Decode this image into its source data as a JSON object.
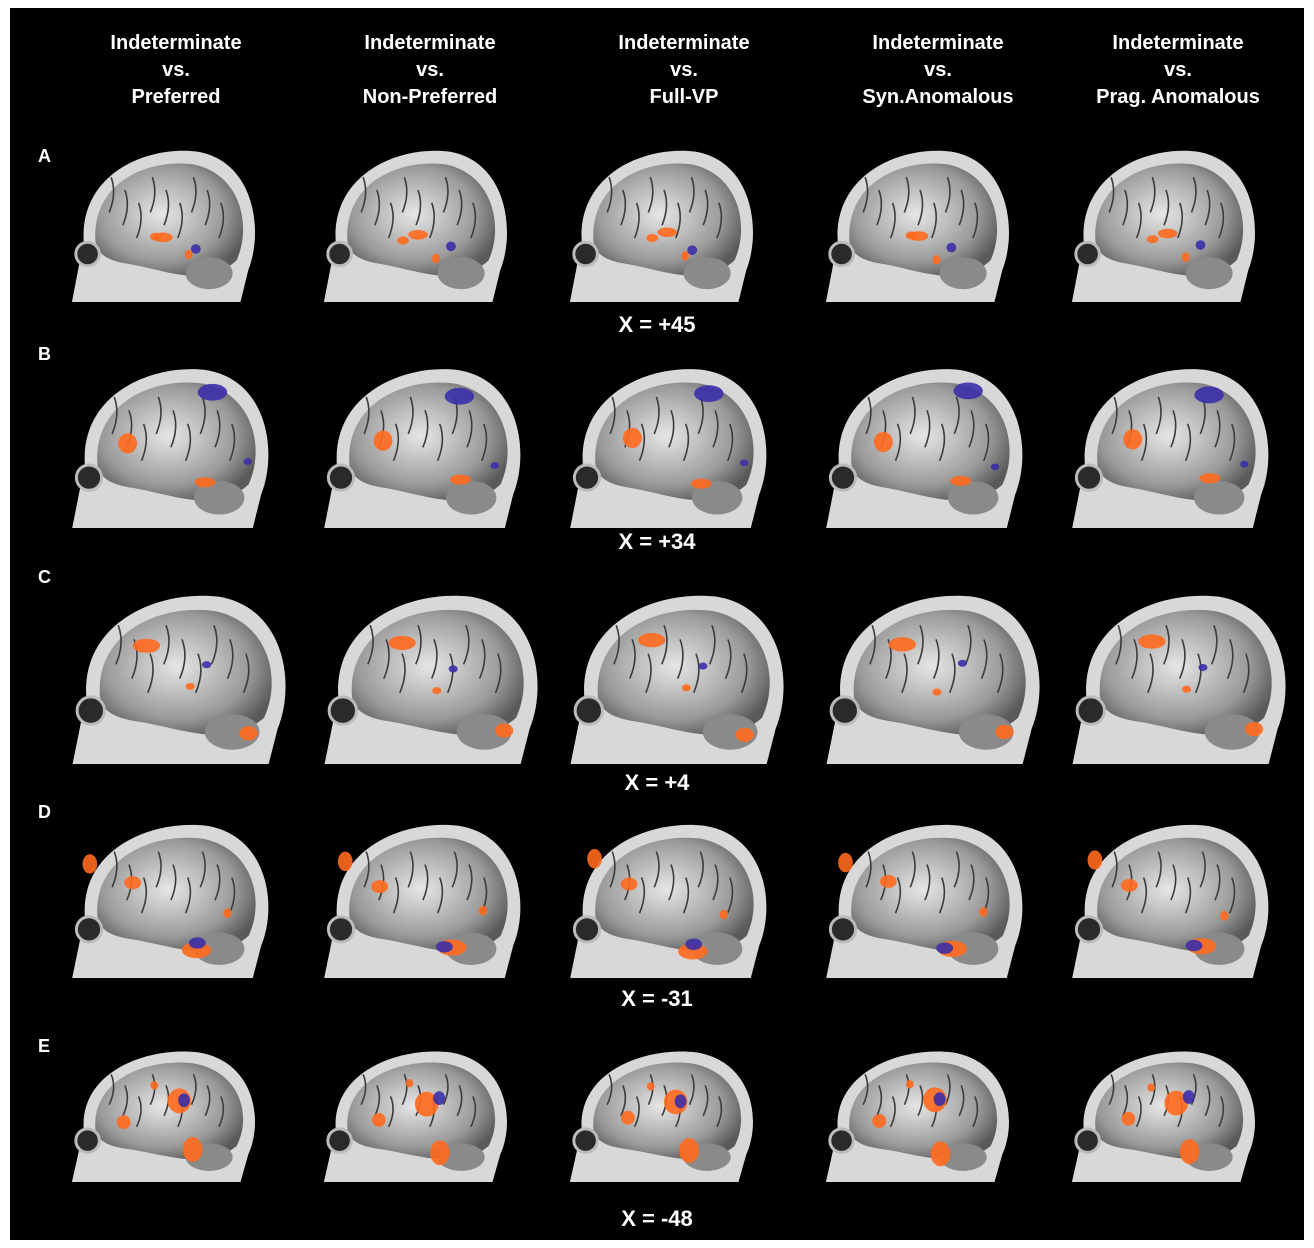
{
  "columns": [
    {
      "line1": "Indeterminate",
      "line2": "vs.",
      "line3": "Preferred"
    },
    {
      "line1": "Indeterminate",
      "line2": "vs.",
      "line3": "Non-Preferred"
    },
    {
      "line1": "Indeterminate",
      "line2": "vs.",
      "line3": "Full-VP"
    },
    {
      "line1": "Indeterminate",
      "line2": "vs.",
      "line3": "Syn.Anomalous"
    },
    {
      "line1": "Indeterminate",
      "line2": "vs.",
      "line3": "Prag. Anomalous"
    }
  ],
  "rows": [
    {
      "letter": "A",
      "coordinate": "X = +45"
    },
    {
      "letter": "B",
      "coordinate": "X = +34"
    },
    {
      "letter": "C",
      "coordinate": "X = +4"
    },
    {
      "letter": "D",
      "coordinate": "X = -31"
    },
    {
      "letter": "E",
      "coordinate": "X = -48"
    }
  ],
  "colors": {
    "background": "#000000",
    "activation_orange": "#ff6a1f",
    "activation_blue": "#3a2fa8"
  }
}
